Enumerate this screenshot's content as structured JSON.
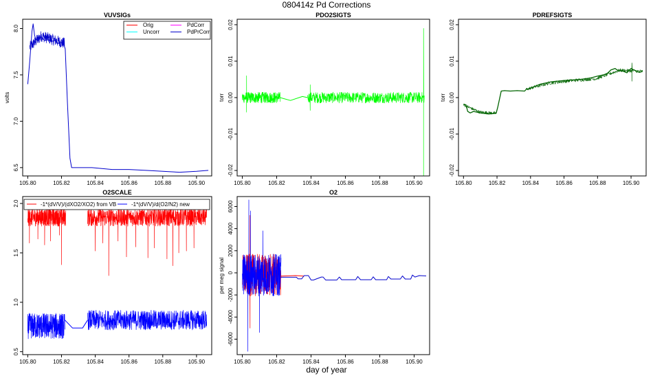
{
  "figure": {
    "title": "080414z   Pd Corrections",
    "xlabel": "day of year"
  },
  "chart_data": [
    {
      "id": "vuvsigs",
      "type": "line",
      "title": "VUVSIGs",
      "xlabel": "",
      "ylabel": "volts",
      "xlim": [
        105.797,
        105.909
      ],
      "ylim": [
        6.41,
        8.1
      ],
      "xticks": [
        105.8,
        105.82,
        105.84,
        105.86,
        105.88,
        105.9
      ],
      "xtick_labels": [
        "105.80",
        "105.82",
        "105.84",
        "105.86",
        "105.88",
        "105.90"
      ],
      "yticks": [
        6.5,
        7.0,
        7.5,
        8.0
      ],
      "ytick_labels": [
        "6.5",
        "7.0",
        "7.5",
        "8.0"
      ],
      "legend": {
        "position": "top-right",
        "entries": [
          {
            "label": "Orig",
            "color": "#ff0000"
          },
          {
            "label": "Uncorr",
            "color": "#00ffff"
          },
          {
            "label": "PdCorr",
            "color": "#ff00ff"
          },
          {
            "label": "PdPrCorr",
            "color": "#0000cc"
          }
        ]
      },
      "series": [
        {
          "name": "PdPrCorr",
          "color": "#0000cc",
          "kind": "polyline",
          "width": 1,
          "x": [
            105.8,
            105.8006,
            105.8012,
            105.8018,
            105.8025,
            105.8032,
            105.804,
            105.8048,
            105.806,
            105.808,
            105.81,
            105.812,
            105.814,
            105.816,
            105.818,
            105.82,
            105.8215,
            105.8222,
            105.8235,
            105.825,
            105.826,
            105.83,
            105.838,
            105.85,
            105.86,
            105.87,
            105.88,
            105.89,
            105.9,
            105.907
          ],
          "y": [
            7.4,
            7.52,
            7.65,
            7.8,
            7.97,
            8.05,
            7.93,
            7.88,
            7.9,
            7.91,
            7.87,
            7.88,
            7.86,
            7.87,
            7.84,
            7.85,
            7.82,
            7.78,
            7.2,
            6.6,
            6.5,
            6.5,
            6.5,
            6.48,
            6.48,
            6.47,
            6.46,
            6.45,
            6.46,
            6.47
          ]
        },
        {
          "name": "PdPrCorr-noise",
          "color": "#0000cc",
          "kind": "noise",
          "width": 0.7,
          "x_range": [
            105.8012,
            105.8218
          ],
          "base": [
            7.8,
            7.92,
            7.88,
            7.84
          ],
          "amplitude": 0.06,
          "points": 180
        }
      ]
    },
    {
      "id": "pdo2sigts",
      "type": "line",
      "title": "PDO2SIGTS",
      "xlabel": "",
      "ylabel": "torr",
      "xlim": [
        105.797,
        105.909
      ],
      "ylim": [
        -0.0215,
        0.0215
      ],
      "xticks": [
        105.8,
        105.82,
        105.84,
        105.86,
        105.88,
        105.9
      ],
      "xtick_labels": [
        "105.80",
        "105.82",
        "105.84",
        "105.86",
        "105.88",
        "105.90"
      ],
      "yticks": [
        -0.02,
        -0.01,
        0.0,
        0.01,
        0.02
      ],
      "ytick_labels": [
        "-0.02",
        "-0.01",
        "0.00",
        "0.01",
        "0.02"
      ],
      "series": [
        {
          "name": "PdO2",
          "color": "#00ff00",
          "kind": "polyline",
          "width": 1,
          "x": [
            105.822,
            105.828,
            105.835,
            105.838
          ],
          "y": [
            0.0,
            -0.0008,
            0.0003,
            0.0
          ]
        },
        {
          "name": "PdO2-noise-1",
          "color": "#00ff00",
          "kind": "noise",
          "width": 0.7,
          "x_range": [
            105.8,
            105.822
          ],
          "base": [
            0.0
          ],
          "amplitude": 0.0015,
          "spikes": [
            [
              105.8025,
              0.006
            ],
            [
              105.8025,
              -0.004
            ]
          ],
          "points": 260
        },
        {
          "name": "PdO2-noise-2",
          "color": "#00ff00",
          "kind": "noise",
          "width": 0.7,
          "x_range": [
            105.838,
            105.906
          ],
          "base": [
            0.0
          ],
          "amplitude": 0.0015,
          "spikes": [
            [
              105.8395,
              0.0035
            ],
            [
              105.8395,
              -0.0035
            ],
            [
              105.9055,
              0.019
            ],
            [
              105.9055,
              -0.022
            ]
          ],
          "points": 520
        }
      ]
    },
    {
      "id": "pdrefsigts",
      "type": "line",
      "title": "PDREFSIGTS",
      "xlabel": "",
      "ylabel": "torr",
      "xlim": [
        105.797,
        105.909
      ],
      "ylim": [
        -0.0215,
        0.0215
      ],
      "xticks": [
        105.8,
        105.82,
        105.84,
        105.86,
        105.88,
        105.9
      ],
      "xtick_labels": [
        "105.80",
        "105.82",
        "105.84",
        "105.86",
        "105.88",
        "105.90"
      ],
      "yticks": [
        -0.02,
        -0.01,
        0.0,
        0.01,
        0.02
      ],
      "ytick_labels": [
        "-0.02",
        "-0.01",
        "0.00",
        "0.01",
        "0.02"
      ],
      "series": [
        {
          "name": "PdRef",
          "color": "#006400",
          "kind": "polyline",
          "width": 1.3,
          "x": [
            105.8,
            105.8015,
            105.8025,
            105.804,
            105.806,
            105.81,
            105.815,
            105.8195,
            105.8205,
            105.8225,
            105.8245,
            105.828,
            105.832,
            105.8365,
            105.8375,
            105.8395,
            105.842,
            105.846,
            105.852,
            105.86,
            105.87,
            105.876,
            105.88,
            105.884,
            105.886,
            105.888,
            105.8905,
            105.8925,
            105.8945,
            105.8975,
            105.9,
            105.903,
            105.905,
            105.907
          ],
          "y": [
            -0.0018,
            -0.002,
            -0.0038,
            -0.0042,
            -0.0038,
            -0.0042,
            -0.0045,
            -0.0043,
            -0.0025,
            0.0018,
            0.0019,
            0.0018,
            0.0019,
            0.0018,
            0.0023,
            0.0024,
            0.003,
            0.0037,
            0.0043,
            0.0047,
            0.005,
            0.0054,
            0.0059,
            0.0063,
            0.0067,
            0.0076,
            0.008,
            0.0073,
            0.0074,
            0.0068,
            0.008,
            0.0073,
            0.0069,
            0.0072
          ]
        },
        {
          "name": "PdRef-noise-1",
          "color": "#006400",
          "kind": "noise",
          "width": 0.7,
          "x_range": [
            105.8,
            105.8195
          ],
          "base": [
            -0.002,
            -0.004,
            -0.0043
          ],
          "amplitude": 0.0004,
          "points": 120
        },
        {
          "name": "PdRef-noise-2",
          "color": "#006400",
          "kind": "noise",
          "width": 0.7,
          "x_range": [
            105.8375,
            105.907
          ],
          "base": [
            0.0023,
            0.004,
            0.0047,
            0.0052,
            0.0075,
            0.0072
          ],
          "amplitude": 0.00045,
          "spikes": [
            [
              105.9005,
              0.0095
            ],
            [
              105.9005,
              0.0045
            ]
          ],
          "points": 320
        }
      ]
    },
    {
      "id": "o2scale",
      "type": "line",
      "title": "O2SCALE",
      "xlabel": "",
      "ylabel": "",
      "xlim": [
        105.797,
        105.909
      ],
      "ylim": [
        0.47,
        2.07
      ],
      "xticks": [
        105.8,
        105.82,
        105.84,
        105.86,
        105.88,
        105.9
      ],
      "xtick_labels": [
        "105.80",
        "105.82",
        "105.84",
        "105.86",
        "105.88",
        "105.90"
      ],
      "yticks": [
        0.5,
        1.0,
        1.5,
        2.0
      ],
      "ytick_labels": [
        "0.5",
        "1.0",
        "1.5",
        "2.0"
      ],
      "legend": {
        "position": "top",
        "entries": [
          {
            "label": "-1*(dV/V)/(dXO2/XO2) from VB",
            "color": "#ff0000"
          },
          {
            "label": "-1*(dV/V)/d(O2/N2) new",
            "color": "#0000ff"
          }
        ]
      },
      "series": [
        {
          "name": "fromVB-noise-1",
          "color": "#ff0000",
          "kind": "noise",
          "width": 0.7,
          "x_range": [
            105.8,
            105.8225
          ],
          "base": [
            1.86
          ],
          "amplitude": 0.09,
          "clip": [
            1.35,
            1.98
          ],
          "spikes": [
            [
              105.801,
              1.6
            ],
            [
              105.806,
              1.64
            ],
            [
              105.81,
              1.58
            ],
            [
              105.8135,
              1.62
            ],
            [
              105.8188,
              1.68
            ],
            [
              105.82,
              1.38
            ]
          ],
          "points": 320
        },
        {
          "name": "fromVB-noise-2",
          "color": "#ff0000",
          "kind": "noise",
          "width": 0.7,
          "x_range": [
            105.8355,
            105.906
          ],
          "base": [
            1.86
          ],
          "amplitude": 0.09,
          "clip": [
            1.35,
            1.98
          ],
          "spikes": [
            [
              105.84,
              1.52
            ],
            [
              105.8445,
              1.6
            ],
            [
              105.848,
              1.27
            ],
            [
              105.8535,
              1.62
            ],
            [
              105.8585,
              1.46
            ],
            [
              105.864,
              1.56
            ],
            [
              105.8712,
              1.45
            ],
            [
              105.875,
              1.55
            ],
            [
              105.8825,
              1.44
            ],
            [
              105.886,
              1.37
            ],
            [
              105.8895,
              1.5
            ],
            [
              105.894,
              1.52
            ],
            [
              105.8985,
              1.55
            ]
          ],
          "points": 700
        },
        {
          "name": "new",
          "color": "#0000ff",
          "kind": "polyline",
          "width": 1,
          "x": [
            105.822,
            105.8265,
            105.8325,
            105.8355
          ],
          "y": [
            0.82,
            0.74,
            0.74,
            0.82
          ]
        },
        {
          "name": "new-noise-1",
          "color": "#0000ff",
          "kind": "noise",
          "width": 0.7,
          "x_range": [
            105.8,
            105.822
          ],
          "base": [
            0.76
          ],
          "amplitude": 0.13,
          "clip": [
            0.55,
            1.12
          ],
          "points": 300
        },
        {
          "name": "new-noise-2",
          "color": "#0000ff",
          "kind": "noise",
          "width": 0.7,
          "x_range": [
            105.8355,
            105.906
          ],
          "base": [
            0.82
          ],
          "amplitude": 0.1,
          "clip": [
            0.56,
            1.12
          ],
          "points": 650
        }
      ]
    },
    {
      "id": "o2",
      "type": "line",
      "title": "O2",
      "xlabel": "",
      "ylabel": "per meg signal",
      "xlim": [
        105.797,
        105.909
      ],
      "ylim": [
        -7400,
        6900
      ],
      "xticks": [
        105.8,
        105.82,
        105.84,
        105.86,
        105.88,
        105.9
      ],
      "xtick_labels": [
        "105.80",
        "105.82",
        "105.84",
        "105.86",
        "105.88",
        "105.90"
      ],
      "yticks": [
        -6000,
        -4000,
        -2000,
        0,
        2000,
        4000,
        6000
      ],
      "ytick_labels": [
        "-6000",
        "-4000",
        "-2000",
        "0",
        "2000",
        "4000",
        "6000"
      ],
      "series": [
        {
          "name": "red-noise",
          "color": "#ff0000",
          "kind": "noise",
          "width": 0.7,
          "x_range": [
            105.8,
            105.8225
          ],
          "base": [
            -200
          ],
          "amplitude": 1900,
          "spikes": [
            [
              105.8045,
              5200
            ],
            [
              105.8045,
              -5000
            ]
          ],
          "points": 260
        },
        {
          "name": "red-line",
          "color": "#ff0000",
          "kind": "polyline",
          "width": 1,
          "x": [
            105.8225,
            105.831,
            105.836
          ],
          "y": [
            -300,
            -250,
            -300
          ]
        },
        {
          "name": "blue-noise",
          "color": "#0000ff",
          "kind": "noise",
          "width": 0.7,
          "x_range": [
            105.8,
            105.8225
          ],
          "base": [
            -200
          ],
          "amplitude": 1900,
          "spikes": [
            [
              105.8038,
              6600
            ],
            [
              105.8032,
              -7100
            ],
            [
              105.8048,
              5600
            ],
            [
              105.81,
              -5400
            ],
            [
              105.812,
              3800
            ]
          ],
          "points": 300
        },
        {
          "name": "blue-step",
          "color": "#0000cc",
          "kind": "polyline",
          "width": 1,
          "x": [
            105.8225,
            105.8315,
            105.8325,
            105.8345,
            105.836,
            105.8385,
            105.84,
            105.8415,
            105.846,
            105.847,
            105.8485,
            105.855,
            105.8565,
            105.8578,
            105.866,
            105.8672,
            105.8688,
            105.875,
            105.8762,
            105.8776,
            105.884,
            105.885,
            105.8865,
            105.892,
            105.8932,
            105.8948,
            105.898,
            105.899,
            105.9005,
            105.903,
            105.907
          ],
          "y": [
            -400,
            -400,
            -550,
            -550,
            -250,
            -250,
            -650,
            -650,
            -380,
            -380,
            -650,
            -650,
            -380,
            -620,
            -620,
            -330,
            -620,
            -620,
            -360,
            -620,
            -620,
            -330,
            -560,
            -560,
            -280,
            -560,
            -560,
            -200,
            -380,
            -250,
            -280
          ]
        }
      ]
    }
  ]
}
